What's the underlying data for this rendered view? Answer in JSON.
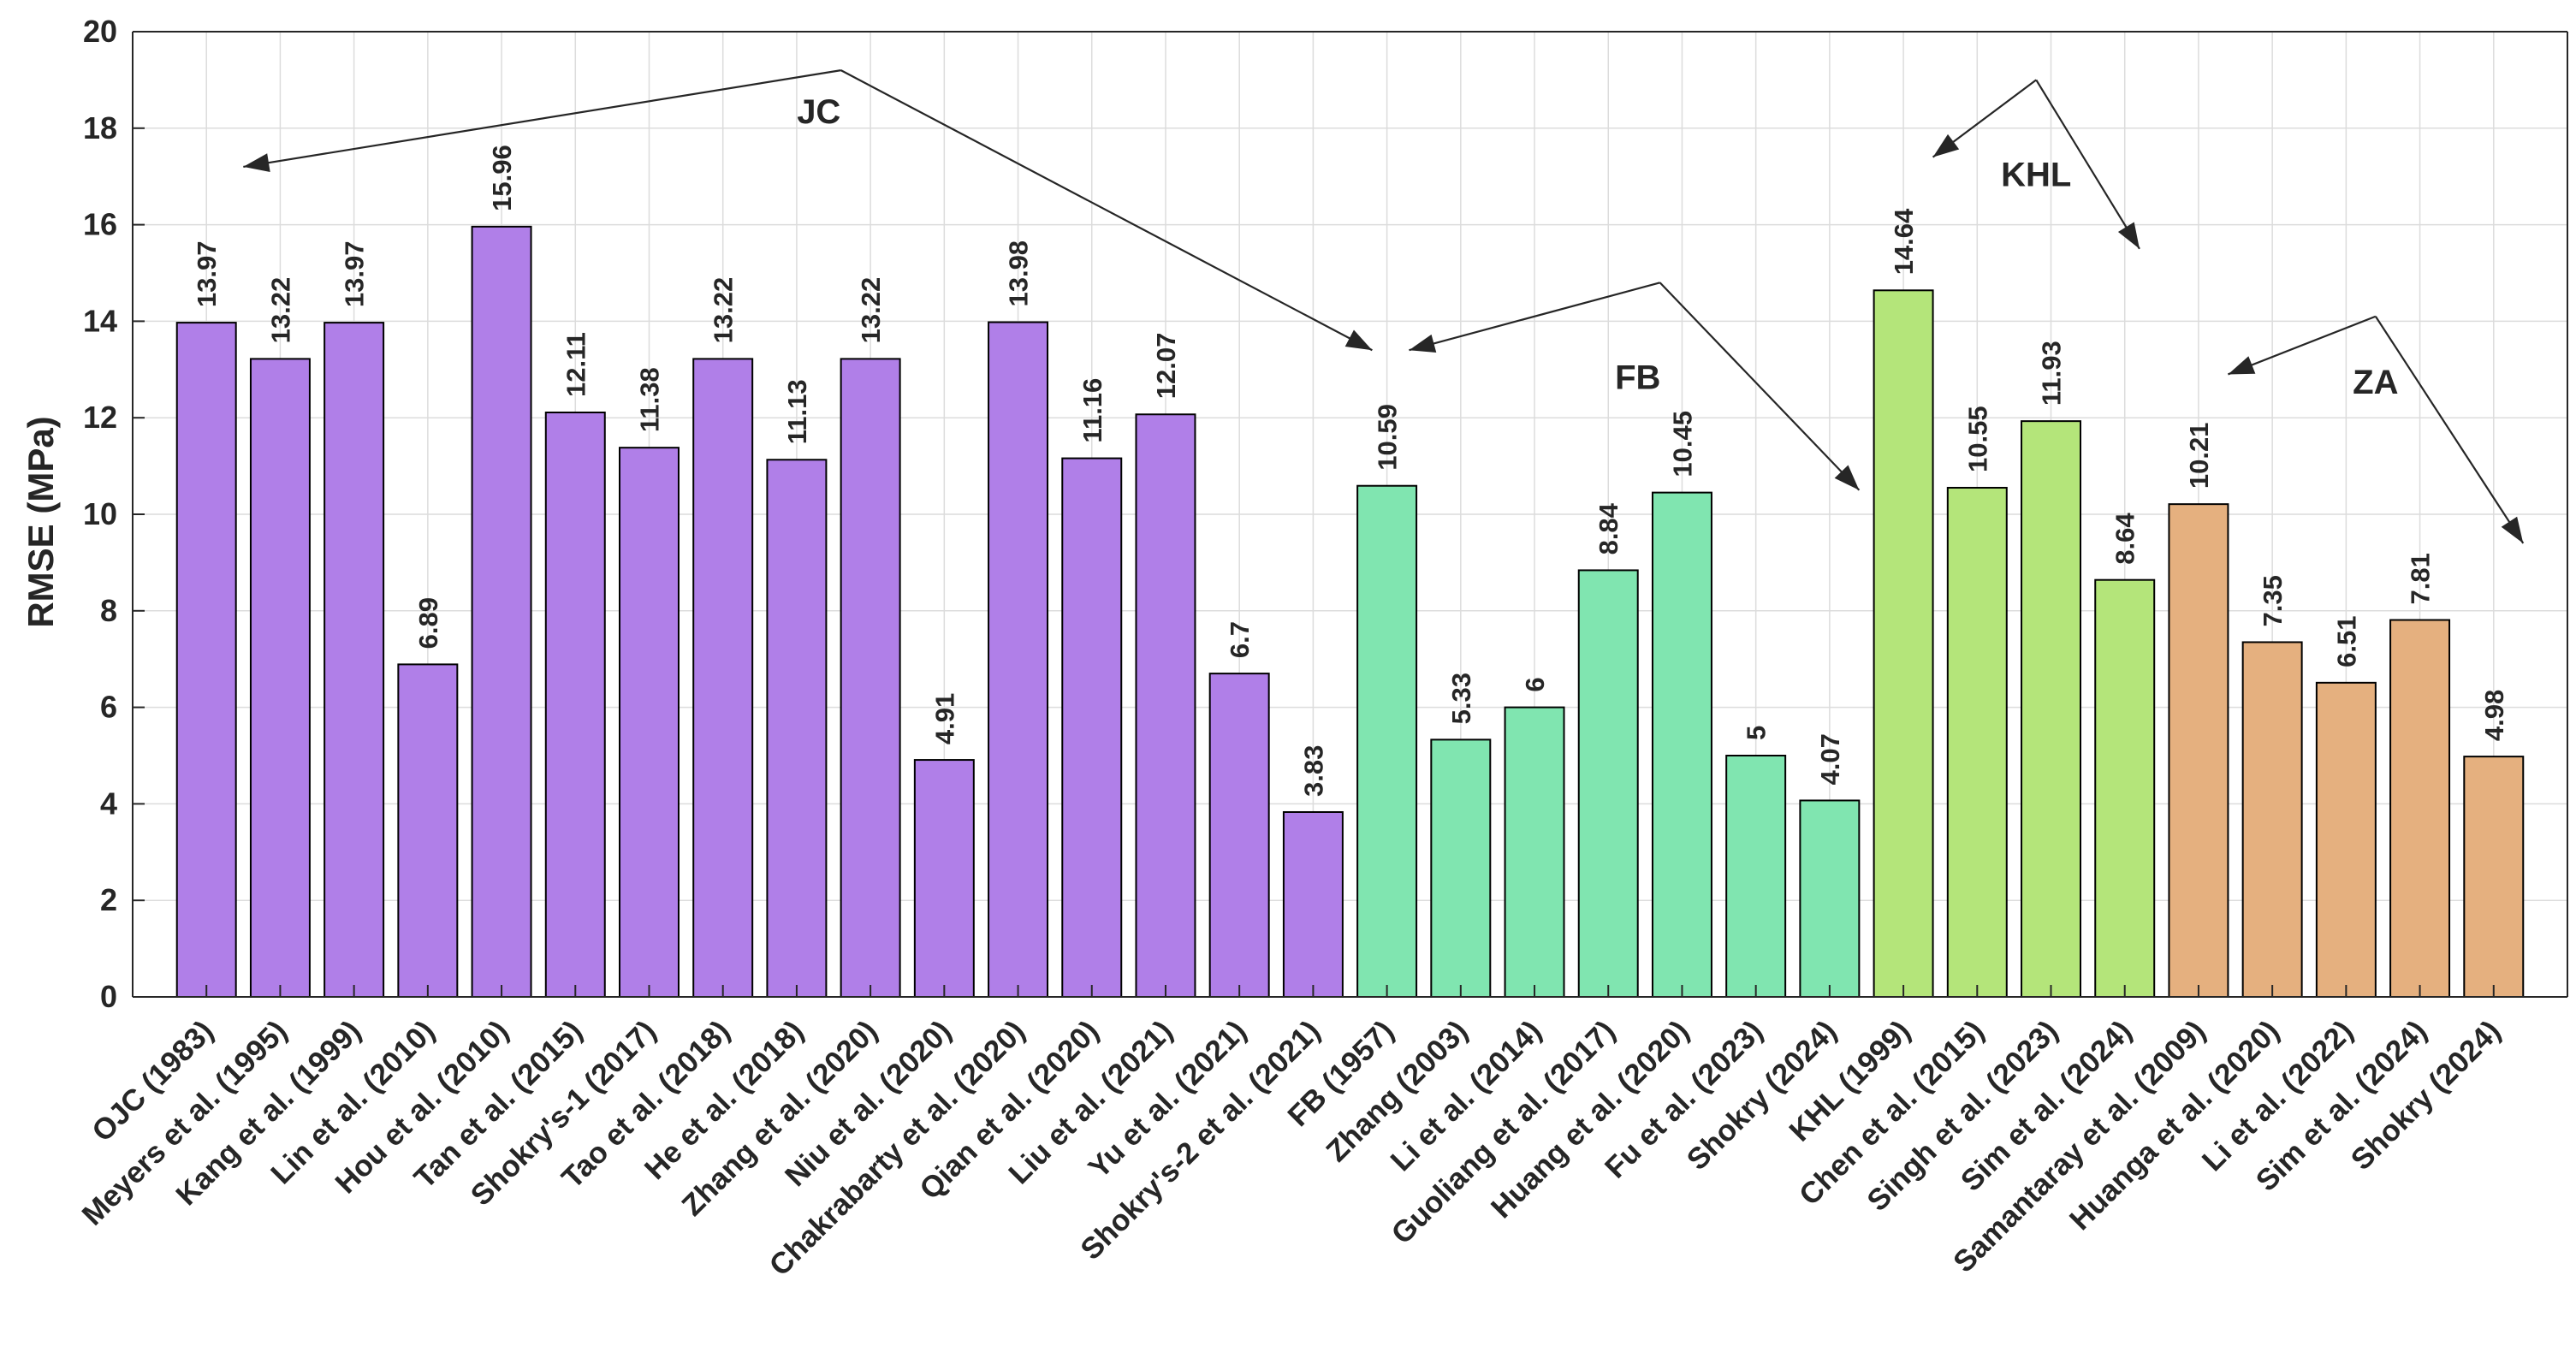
{
  "chart_data": {
    "type": "bar",
    "title": "",
    "xlabel": "",
    "ylabel": "RMSE (MPa)",
    "ylim": [
      0,
      20
    ],
    "yticks": [
      "0",
      "2",
      "4",
      "6",
      "8",
      "10",
      "12",
      "14",
      "16",
      "18",
      "20"
    ],
    "grid": true,
    "categories": [
      "OJC (1983)",
      "Meyers et al. (1995)",
      "Kang et al. (1999)",
      "Lin et al. (2010)",
      "Hou et al. (2010)",
      "Tan et al. (2015)",
      "Shokry's-1 (2017)",
      "Tao et al. (2018)",
      "He et al. (2018)",
      "Zhang et al. (2020)",
      "Niu et al. (2020)",
      "Chakrabarty et al. (2020)",
      "Qian et al. (2020)",
      "Liu et al. (2021)",
      "Yu et al. (2021)",
      "Shokry's-2 et al. (2021)",
      "FB (1957)",
      "Zhang (2003)",
      "Li et al. (2014)",
      "Guoliang et al. (2017)",
      "Huang et al. (2020)",
      "Fu et al. (2023)",
      "Shokry (2024)",
      "KHL (1999)",
      "Chen et al. (2015)",
      "Singh et al. (2023)",
      "Sim et al. (2024)",
      "Samantaray et al. (2009)",
      "Huanga et al. (2020)",
      "Li et al. (2022)",
      "Sim et al. (2024)",
      "Shokry (2024)"
    ],
    "values": [
      13.97,
      13.22,
      13.97,
      6.89,
      15.96,
      12.11,
      11.38,
      13.22,
      11.13,
      13.22,
      4.91,
      13.98,
      11.16,
      12.07,
      6.7,
      3.83,
      10.59,
      5.33,
      6,
      8.84,
      10.45,
      5,
      4.07,
      14.64,
      10.55,
      11.93,
      8.64,
      10.21,
      7.35,
      6.51,
      7.81,
      4.98
    ],
    "value_labels": [
      "13.97",
      "13.22",
      "13.97",
      "6.89",
      "15.96",
      "12.11",
      "11.38",
      "13.22",
      "11.13",
      "13.22",
      "4.91",
      "13.98",
      "11.16",
      "12.07",
      "6.7",
      "3.83",
      "10.59",
      "5.33",
      "6",
      "8.84",
      "10.45",
      "5",
      "4.07",
      "14.64",
      "10.55",
      "11.93",
      "8.64",
      "10.21",
      "7.35",
      "6.51",
      "7.81",
      "4.98"
    ],
    "groups": [
      {
        "name": "JC",
        "start": 0,
        "end": 15,
        "color": "#b07fe8",
        "label_pos": [
          8.3,
          18.1
        ],
        "apex": [
          8.6,
          19.2
        ],
        "arrow_left": [
          0.5,
          17.2
        ],
        "arrow_right": [
          15.8,
          13.4
        ]
      },
      {
        "name": "FB",
        "start": 16,
        "end": 22,
        "color": "#80e5b0",
        "label_pos": [
          19.4,
          12.6
        ],
        "apex": [
          19.7,
          14.8
        ],
        "arrow_left": [
          16.3,
          13.4
        ],
        "arrow_right": [
          22.4,
          10.5
        ]
      },
      {
        "name": "KHL",
        "start": 23,
        "end": 26,
        "color": "#b4e57a",
        "label_pos": [
          24.8,
          16.8
        ],
        "apex": [
          24.8,
          19.0
        ],
        "arrow_left": [
          23.4,
          17.4
        ],
        "arrow_right": [
          26.2,
          15.5
        ]
      },
      {
        "name": "ZA",
        "start": 27,
        "end": 31,
        "color": "#e5b07f",
        "label_pos": [
          29.4,
          12.5
        ],
        "apex": [
          29.4,
          14.1
        ],
        "arrow_left": [
          27.4,
          12.9
        ],
        "arrow_right": [
          31.4,
          9.4
        ]
      }
    ]
  }
}
